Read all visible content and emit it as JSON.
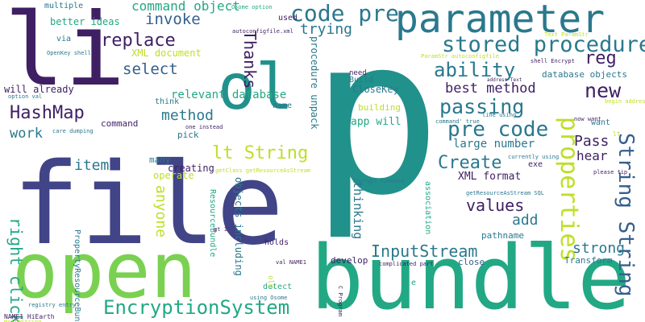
{
  "palette": {
    "dark_purple": "#3f1f64",
    "indigo": "#414487",
    "blue": "#355f8d",
    "teal_blue": "#2a788e",
    "teal": "#21918c",
    "green_teal": "#22a884",
    "green": "#44bf70",
    "lime": "#7ad151",
    "yellow": "#bddf26",
    "bright_yellow": "#fde725"
  },
  "words": [
    "p",
    "file",
    "bundle",
    "open",
    "li",
    "ol",
    "parameter",
    "code pre",
    "stored procedure",
    "ability",
    "passing",
    "pre code",
    "new",
    "reg",
    "best method",
    "properties",
    "String String",
    "lt String",
    "EncryptionSystem",
    "InputStream",
    "values",
    "Create",
    "HashMap",
    "replace",
    "select",
    "invoke",
    "command object",
    "Thanks",
    "trying",
    "method",
    "item",
    "work",
    "right click",
    "anyone",
    "thinking",
    "strong",
    "add",
    "Pass",
    "hear",
    "large number",
    "app will",
    "XML format",
    "relevant database",
    "will already",
    "XML document",
    "better ideas",
    "multiple",
    "database objects",
    "procedure unpack",
    "objects including",
    "ResourceBundle",
    "PropertyResourceBundle",
    "creating",
    "operate",
    "many",
    "pick",
    "command",
    "name",
    "think",
    "CloseKey",
    "Build",
    "need",
    "building",
    "association",
    "pathname",
    "develop",
    "close",
    "Transform",
    "holds",
    "detect",
    "old",
    "via",
    "used",
    "exe",
    "want",
    "lt",
    "e",
    "OpenKey shell",
    "Osome option",
    "autoconfigfile.xml",
    "Text ParamStr",
    "ParamStr autoconfigfile",
    "shell Encrypt",
    "address Text",
    "begin address",
    "now want",
    "line using",
    "command' true",
    "currently using",
    "getClass getResourceAsStream",
    "please tip",
    "Encrypt command'",
    "getResourceAsStream SQL",
    "option val",
    "care dumping",
    "WriteString",
    "val NAME1",
    "NAME1 HiEarth",
    "registry entry",
    "using Osome",
    "C Program",
    "complicated part",
    "gt 1'",
    "one instead"
  ]
}
